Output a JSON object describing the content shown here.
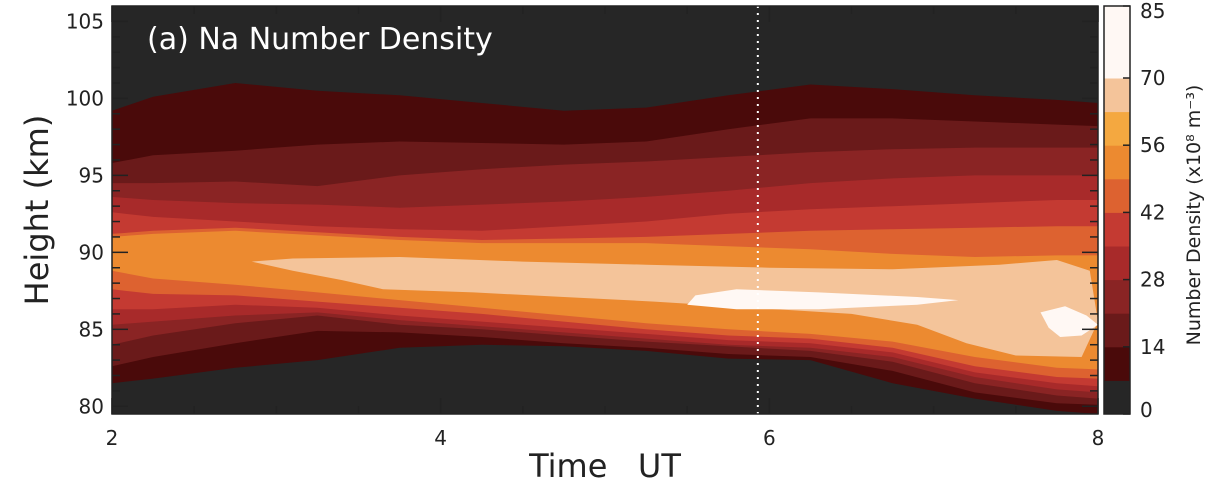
{
  "chart_data": {
    "type": "heatmap",
    "title": "(a) Na Number Density",
    "xlabel": "Time   UT",
    "ylabel": "Height (km)",
    "xlim": [
      2,
      8
    ],
    "ylim": [
      79.5,
      106
    ],
    "x_ticks": [
      "2",
      "4",
      "6",
      "8"
    ],
    "y_ticks": [
      "80",
      "85",
      "90",
      "95",
      "100",
      "105"
    ],
    "colorbar": {
      "label": "Number Density (x10⁸ m⁻³)",
      "range": [
        0,
        85
      ],
      "ticks": [
        "0",
        "14",
        "28",
        "42",
        "56",
        "70",
        "85"
      ],
      "levels": [
        0,
        7,
        14,
        21,
        28,
        35,
        42,
        49,
        56,
        63,
        70,
        85
      ],
      "colors": [
        "#262626",
        "#4a0a0a",
        "#6a1a1a",
        "#8a2424",
        "#a82a2a",
        "#c43a32",
        "#dd6230",
        "#ec8a30",
        "#f4a840",
        "#f4c49a",
        "#fff8f4"
      ]
    },
    "annotation": {
      "vertical_dotted_line_x": 5.93
    },
    "time_grid": [
      2.0,
      2.25,
      2.75,
      3.25,
      3.75,
      4.25,
      4.75,
      5.25,
      5.75,
      6.25,
      6.75,
      7.25,
      7.75,
      8.0
    ],
    "contours": [
      {
        "level": 7,
        "upper": [
          99.2,
          100.1,
          101.0,
          100.5,
          100.2,
          99.7,
          99.2,
          99.4,
          100.2,
          100.9,
          100.6,
          100.2,
          99.9,
          99.7
        ],
        "lower": [
          81.5,
          81.8,
          82.5,
          83.0,
          83.8,
          84.0,
          83.9,
          83.6,
          83.1,
          83.0,
          81.5,
          80.5,
          79.7,
          79.5
        ]
      },
      {
        "level": 14,
        "upper": [
          95.8,
          96.3,
          96.6,
          97.0,
          97.2,
          97.1,
          97.0,
          97.2,
          98.0,
          98.7,
          98.7,
          98.5,
          98.3,
          98.2
        ],
        "lower": [
          82.6,
          83.2,
          84.1,
          84.9,
          84.8,
          84.5,
          84.1,
          83.8,
          83.4,
          83.2,
          82.3,
          80.9,
          80.2,
          80.1
        ]
      },
      {
        "level": 21,
        "upper": [
          94.5,
          94.5,
          94.6,
          94.3,
          95.0,
          95.4,
          95.7,
          95.9,
          96.2,
          96.5,
          96.7,
          96.8,
          96.8,
          96.8
        ],
        "lower": [
          84.0,
          84.6,
          85.4,
          85.9,
          85.3,
          85.0,
          84.6,
          84.2,
          83.9,
          83.6,
          82.9,
          81.5,
          80.7,
          80.5
        ]
      },
      {
        "level": 28,
        "upper": [
          93.6,
          93.4,
          93.2,
          93.1,
          92.9,
          93.1,
          93.3,
          93.6,
          94.0,
          94.5,
          94.8,
          95.0,
          95.0,
          95.0
        ],
        "lower": [
          85.3,
          85.5,
          85.9,
          86.1,
          85.6,
          85.2,
          84.8,
          84.4,
          84.0,
          83.8,
          83.2,
          81.9,
          81.1,
          80.9
        ]
      },
      {
        "level": 35,
        "upper": [
          92.6,
          92.3,
          92.0,
          91.7,
          91.5,
          91.4,
          91.7,
          92.0,
          92.5,
          92.8,
          93.0,
          93.2,
          93.4,
          93.4
        ],
        "lower": [
          86.3,
          86.3,
          86.6,
          86.4,
          85.9,
          85.5,
          85.1,
          84.7,
          84.3,
          84.1,
          83.5,
          82.2,
          81.5,
          81.3
        ]
      },
      {
        "level": 42,
        "upper": [
          91.2,
          91.4,
          91.6,
          91.3,
          91.0,
          90.8,
          90.9,
          91.0,
          91.2,
          91.4,
          91.5,
          91.6,
          91.7,
          91.7
        ],
        "lower": [
          87.6,
          87.3,
          87.2,
          86.8,
          86.4,
          86.0,
          85.5,
          85.0,
          84.6,
          84.4,
          83.8,
          82.6,
          81.9,
          81.8
        ]
      },
      {
        "level": 49,
        "upper": [
          91.0,
          91.2,
          91.4,
          91.1,
          90.8,
          90.6,
          90.6,
          90.6,
          90.4,
          90.2,
          89.9,
          89.7,
          89.8,
          89.8
        ],
        "lower": [
          88.8,
          88.3,
          87.9,
          87.4,
          86.9,
          86.4,
          85.9,
          85.4,
          85.0,
          84.7,
          84.2,
          83.2,
          82.5,
          82.4
        ]
      },
      {
        "level": 56,
        "upper": [
          91.0,
          91.2,
          91.4,
          91.1,
          90.8,
          90.6,
          90.6,
          90.6,
          90.4,
          90.2,
          89.9,
          89.7,
          89.8,
          89.8
        ],
        "lower": [
          91.0,
          91.2,
          91.4,
          91.1,
          90.8,
          90.6,
          90.6,
          90.6,
          90.4,
          90.2,
          89.9,
          89.7,
          89.8,
          89.8
        ]
      }
    ],
    "core_region": {
      "level": 63,
      "points": [
        [
          2.85,
          89.4
        ],
        [
          3.1,
          89.6
        ],
        [
          3.75,
          89.7
        ],
        [
          4.5,
          89.4
        ],
        [
          5.25,
          89.2
        ],
        [
          6.0,
          89.0
        ],
        [
          6.75,
          88.9
        ],
        [
          7.4,
          89.2
        ],
        [
          7.75,
          89.5
        ],
        [
          7.95,
          88.8
        ],
        [
          8.0,
          85.5
        ],
        [
          7.9,
          83.2
        ],
        [
          7.5,
          83.3
        ],
        [
          7.2,
          84.1
        ],
        [
          6.9,
          85.3
        ],
        [
          6.5,
          86.0
        ],
        [
          5.9,
          86.4
        ],
        [
          5.3,
          86.8
        ],
        [
          4.75,
          87.1
        ],
        [
          4.2,
          87.4
        ],
        [
          3.65,
          87.6
        ],
        [
          3.4,
          88.2
        ],
        [
          3.1,
          88.8
        ]
      ]
    },
    "max_regions": [
      {
        "level": 70,
        "points": [
          [
            5.55,
            87.2
          ],
          [
            5.8,
            87.6
          ],
          [
            6.3,
            87.4
          ],
          [
            6.9,
            87.1
          ],
          [
            7.15,
            86.9
          ],
          [
            6.9,
            86.6
          ],
          [
            6.3,
            86.3
          ],
          [
            5.8,
            86.3
          ],
          [
            5.5,
            86.6
          ]
        ]
      },
      {
        "level": 70,
        "points": [
          [
            7.65,
            86.1
          ],
          [
            7.8,
            86.5
          ],
          [
            7.93,
            85.9
          ],
          [
            8.0,
            85.3
          ],
          [
            7.9,
            84.6
          ],
          [
            7.77,
            84.5
          ],
          [
            7.7,
            85.1
          ]
        ]
      }
    ]
  }
}
